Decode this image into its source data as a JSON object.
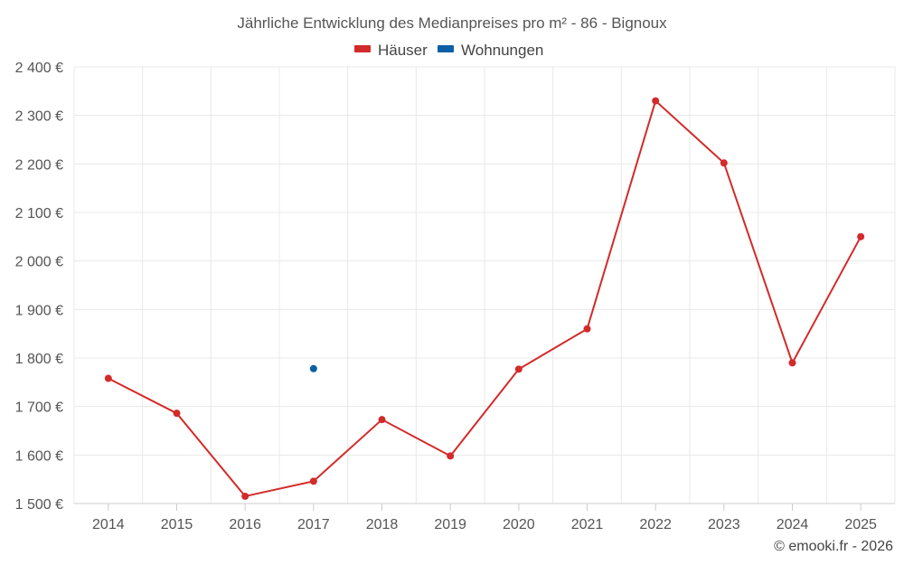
{
  "chart_data": {
    "type": "line",
    "title": "Jährliche Entwicklung des Medianpreises pro m² - 86 - Bignoux",
    "categories": [
      "2014",
      "2015",
      "2016",
      "2017",
      "2018",
      "2019",
      "2020",
      "2021",
      "2022",
      "2023",
      "2024",
      "2025"
    ],
    "series": [
      {
        "name": "Häuser",
        "color": "#d32a2a",
        "values": [
          1758,
          1686,
          1515,
          1546,
          1673,
          1598,
          1777,
          1860,
          2330,
          2202,
          1790,
          2050
        ]
      },
      {
        "name": "Wohnungen",
        "color": "#0b5fa5",
        "values": [
          null,
          null,
          null,
          1778,
          null,
          null,
          null,
          null,
          null,
          null,
          null,
          null
        ]
      }
    ],
    "ylim": [
      1500,
      2400
    ],
    "yticks": [
      1500,
      1600,
      1700,
      1800,
      1900,
      2000,
      2100,
      2200,
      2300,
      2400
    ],
    "ytick_labels": [
      "1 500 €",
      "1 600 €",
      "1 700 €",
      "1 800 €",
      "1 900 €",
      "2 000 €",
      "2 100 €",
      "2 200 €",
      "2 300 €",
      "2 400 €"
    ],
    "xlabel": "",
    "ylabel": "",
    "grid": true,
    "legend_position": "top-center"
  },
  "credit": "© emooki.fr - 2026"
}
